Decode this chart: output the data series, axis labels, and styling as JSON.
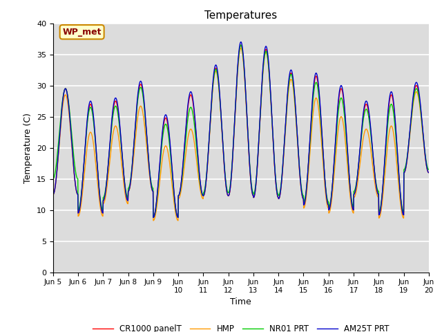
{
  "title": "Temperatures",
  "xlabel": "Time",
  "ylabel": "Temperature (C)",
  "ylim": [
    0,
    40
  ],
  "yticks": [
    0,
    5,
    10,
    15,
    20,
    25,
    30,
    35,
    40
  ],
  "plot_background": "#dcdcdc",
  "grid_color": "white",
  "annotation_text": "WP_met",
  "annotation_bg": "#ffffcc",
  "annotation_border": "#cc8800",
  "annotation_text_color": "#880000",
  "series_colors": [
    "#ff0000",
    "#ff9900",
    "#00cc00",
    "#0000cc"
  ],
  "series_labels": [
    "CR1000 panelT",
    "HMP",
    "NR01 PRT",
    "AM25T PRT"
  ],
  "x_tick_labels": [
    "Jun 5",
    "Jun 6",
    "Jun 7",
    "Jun 8",
    "Jun 9",
    "Jun\n10",
    "Jun\n11",
    "Jun\n12",
    "Jun\n13",
    "Jun\n14",
    "Jun\n15",
    "Jun\n16",
    "Jun\n17",
    "Jun\n18",
    "Jun\n19",
    "Jun\n20"
  ],
  "n_days": 15,
  "points_per_day": 96,
  "day_highs": [
    29.5,
    27.0,
    27.5,
    30.2,
    24.8,
    28.5,
    32.8,
    36.5,
    35.8,
    32.0,
    31.5,
    29.5,
    27.0,
    28.5,
    30.0
  ],
  "day_lows": [
    12.5,
    9.5,
    11.5,
    13.0,
    8.8,
    12.3,
    12.3,
    12.3,
    12.0,
    11.8,
    10.8,
    10.0,
    12.5,
    9.2,
    16.0
  ],
  "hmp_peak_offsets": [
    -1.0,
    -4.5,
    -4.0,
    -3.5,
    -4.5,
    -5.5,
    -0.5,
    -0.5,
    -0.5,
    -1.0,
    -3.5,
    -4.5,
    -4.0,
    -5.0,
    -1.0
  ],
  "nr01_peak_offsets": [
    0.0,
    -0.5,
    -0.8,
    -0.5,
    -1.0,
    -2.0,
    -0.2,
    0.0,
    -0.3,
    -0.2,
    -1.0,
    -1.5,
    -0.8,
    -1.5,
    -0.5
  ],
  "am25t_peak_offsets": [
    0.0,
    0.5,
    0.5,
    0.5,
    0.5,
    0.5,
    0.5,
    0.5,
    0.5,
    0.5,
    0.5,
    0.5,
    0.5,
    0.5,
    0.5
  ],
  "hmp_low_offsets": [
    0.0,
    -0.5,
    -0.5,
    0.0,
    -0.5,
    -0.5,
    0.0,
    0.0,
    0.0,
    0.0,
    -0.5,
    -0.5,
    -0.5,
    -0.5,
    0.0
  ],
  "nr01_low_offsets": [
    2.5,
    0.5,
    0.5,
    0.5,
    0.0,
    0.0,
    0.5,
    0.5,
    0.5,
    0.5,
    0.5,
    0.5,
    0.5,
    0.5,
    0.5
  ],
  "am25t_low_offsets": [
    0.0,
    0.0,
    0.0,
    0.0,
    0.0,
    0.0,
    0.0,
    0.0,
    0.0,
    0.0,
    0.0,
    0.0,
    0.0,
    0.0,
    0.0
  ]
}
